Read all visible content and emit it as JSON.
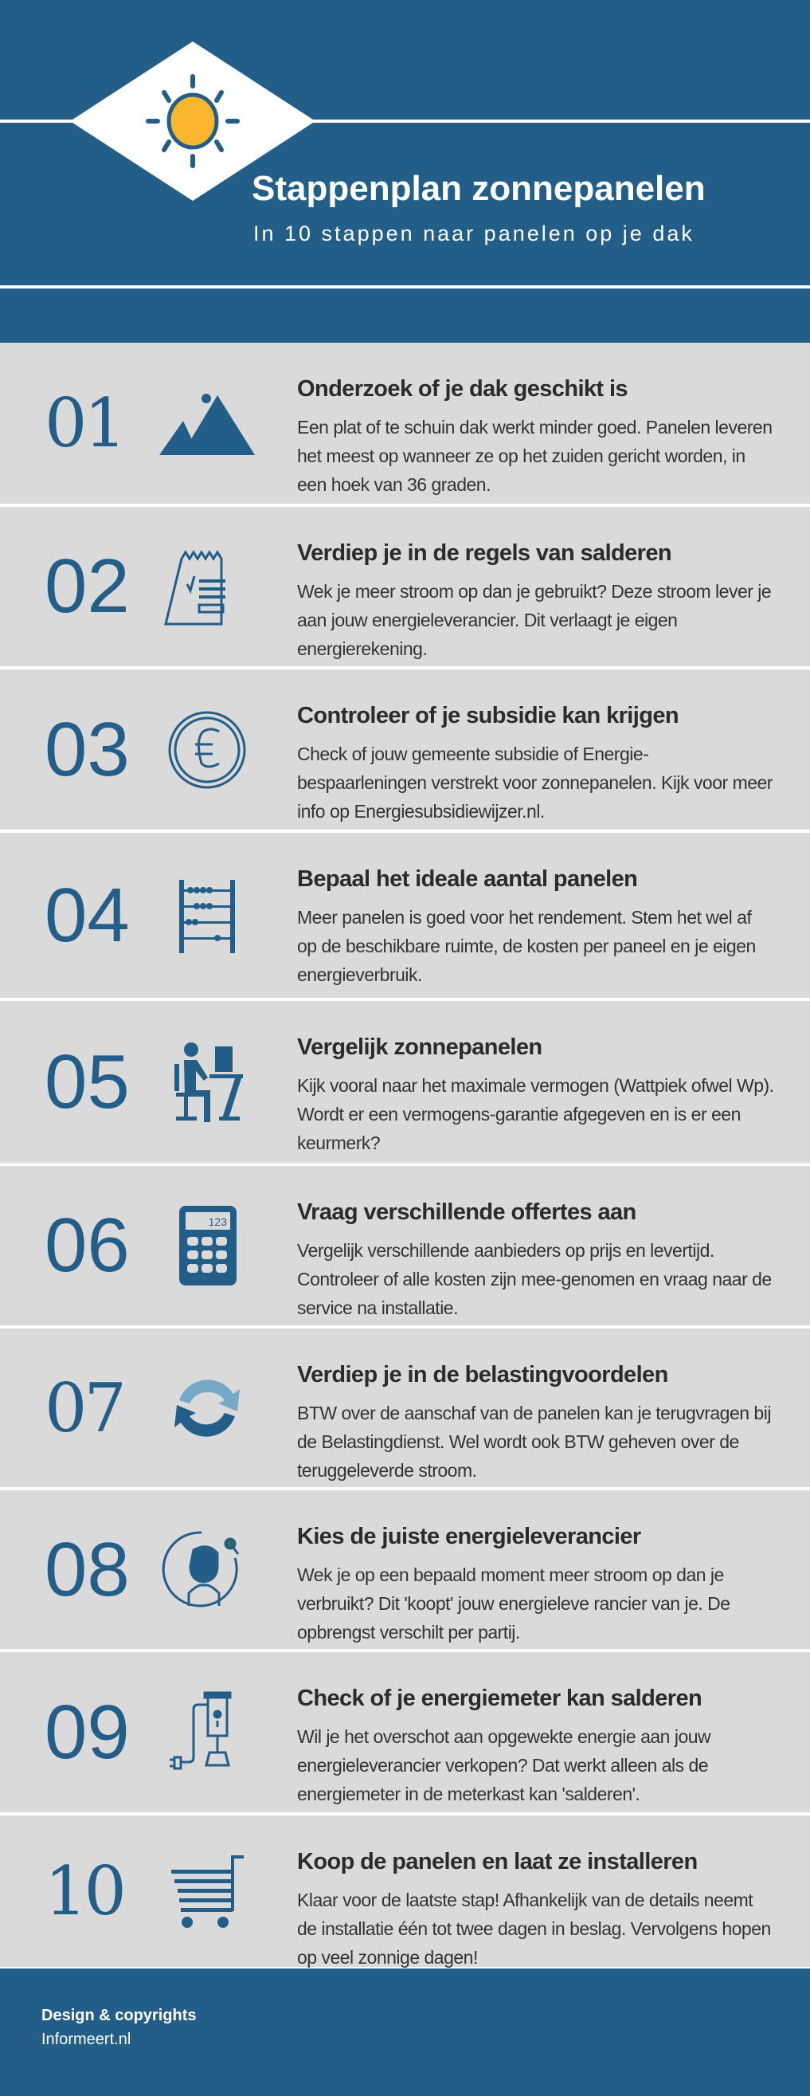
{
  "header": {
    "title": "Stappenplan zonnepanelen",
    "subtitle": "In 10 stappen naar panelen op je dak",
    "icon": "sun-icon"
  },
  "colors": {
    "primary": "#235e89",
    "sun": "#fbb62f",
    "background": "#dadada"
  },
  "steps": [
    {
      "number": "01",
      "icon": "mountain-icon",
      "title": "Onderzoek of je dak geschikt is",
      "text": "Een plat of te schuin dak werkt minder goed. Panelen leveren het meest op wanneer ze op het zuiden gericht worden, in een hoek van 36 graden."
    },
    {
      "number": "02",
      "icon": "receipt-checklist-icon",
      "title": "Verdiep je in de regels van salderen",
      "text": "Wek je meer stroom op dan je gebruikt? Deze stroom lever je aan jouw energieleverancier. Dit verlaagt je eigen energierekening."
    },
    {
      "number": "03",
      "icon": "euro-coin-icon",
      "title": "Controleer of je subsidie kan krijgen",
      "text": "Check of jouw gemeente subsidie of Energie-bespaarleningen verstrekt voor zonnepanelen. Kijk voor meer info op Energiesubsidiewijzer.nl."
    },
    {
      "number": "04",
      "icon": "abacus-icon",
      "title": "Bepaal het ideale aantal panelen",
      "text": "Meer panelen is goed voor het rendement. Stem het wel af op de beschikbare ruimte, de kosten per paneel en je eigen energieverbruik."
    },
    {
      "number": "05",
      "icon": "person-at-computer-icon",
      "title": "Vergelijk zonnepanelen",
      "text": "Kijk vooral naar het maximale vermogen (Wattpiek ofwel Wp). Wordt er een vermogens-garantie afgegeven en is er een keurmerk?"
    },
    {
      "number": "06",
      "icon": "calculator-icon",
      "icon_text": "123",
      "title": "Vraag verschillende offertes aan",
      "text": "Vergelijk verschillende aanbieders op prijs en levertijd. Controleer of alle kosten zijn mee-genomen en vraag naar de service na installatie."
    },
    {
      "number": "07",
      "icon": "refresh-arrows-icon",
      "title": "Verdiep je in de belastingvoordelen",
      "text": "BTW over de aanschaf van de panelen kan je terugvragen bij de Belastingdienst. Wel wordt ook BTW geheven over de teruggeleverde stroom."
    },
    {
      "number": "08",
      "icon": "person-search-icon",
      "title": "Kies de juiste energieleverancier",
      "text": "Wek je op een bepaald moment meer stroom op dan je verbruikt? Dit 'koopt' jouw energieleve rancier van je. De opbrengst verschilt per partij."
    },
    {
      "number": "09",
      "icon": "energy-meter-plug-icon",
      "title": "Check of je energiemeter kan salderen",
      "text": "Wil je het overschot aan opgewekte energie aan jouw energieleverancier verkopen? Dat werkt alleen als de energiemeter in de meterkast kan 'salderen'."
    },
    {
      "number": "10",
      "icon": "shopping-cart-icon",
      "title": "Koop de panelen en laat ze installeren",
      "text": "Klaar voor de laatste stap! Afhankelijk van de details neemt de installatie één tot twee dagen in beslag. Vervolgens hopen op veel zonnige dagen!"
    }
  ],
  "footer": {
    "line1": "Design & copyrights",
    "line2": "Informeert.nl"
  }
}
